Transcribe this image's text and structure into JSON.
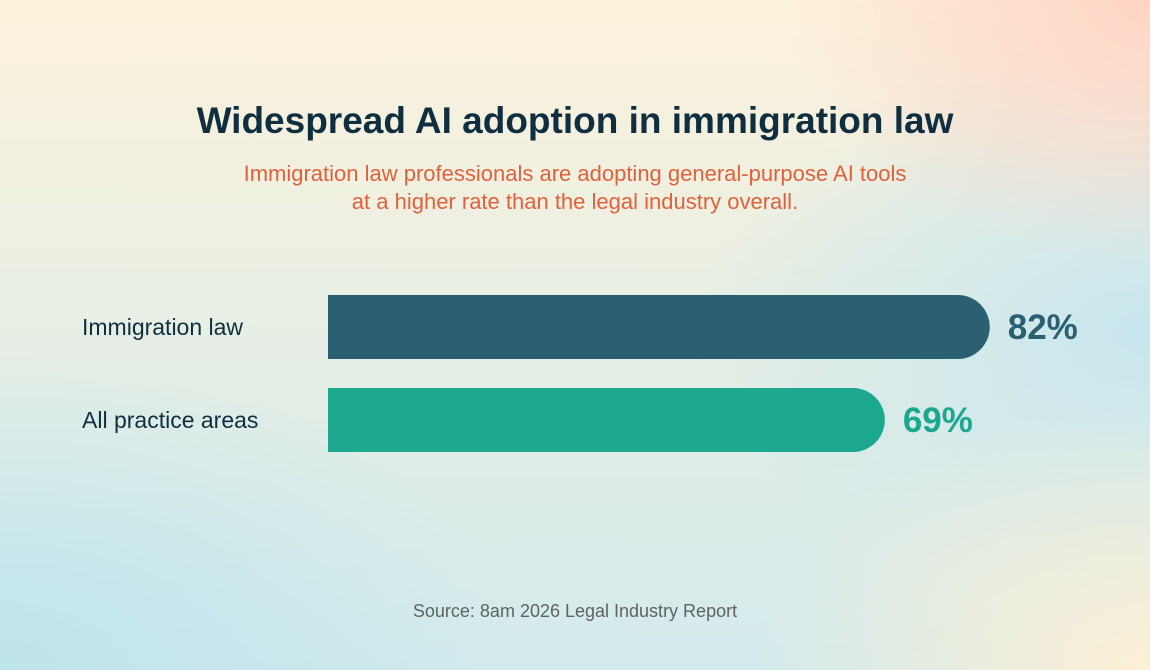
{
  "title": "Widespread AI adoption in immigration law",
  "subtitle_lines": [
    "Immigration law professionals are adopting general-purpose AI tools",
    "at a higher rate than the legal industry overall."
  ],
  "source": "Source: 8am 2026 Legal Industry Report",
  "colors": {
    "title": "#0f2f41",
    "subtitle": "#e0613a",
    "label": "#0f2f41",
    "source": "#5e6264"
  },
  "chart_data": {
    "type": "bar",
    "orientation": "horizontal",
    "categories": [
      "Immigration law",
      "All practice areas"
    ],
    "values": [
      82,
      69
    ],
    "value_labels": [
      "82%",
      "69%"
    ],
    "unit": "%",
    "colors": [
      "#2a6072",
      "#1ba88f"
    ],
    "xlim": [
      0,
      100
    ],
    "grid": false,
    "legend": "none"
  }
}
